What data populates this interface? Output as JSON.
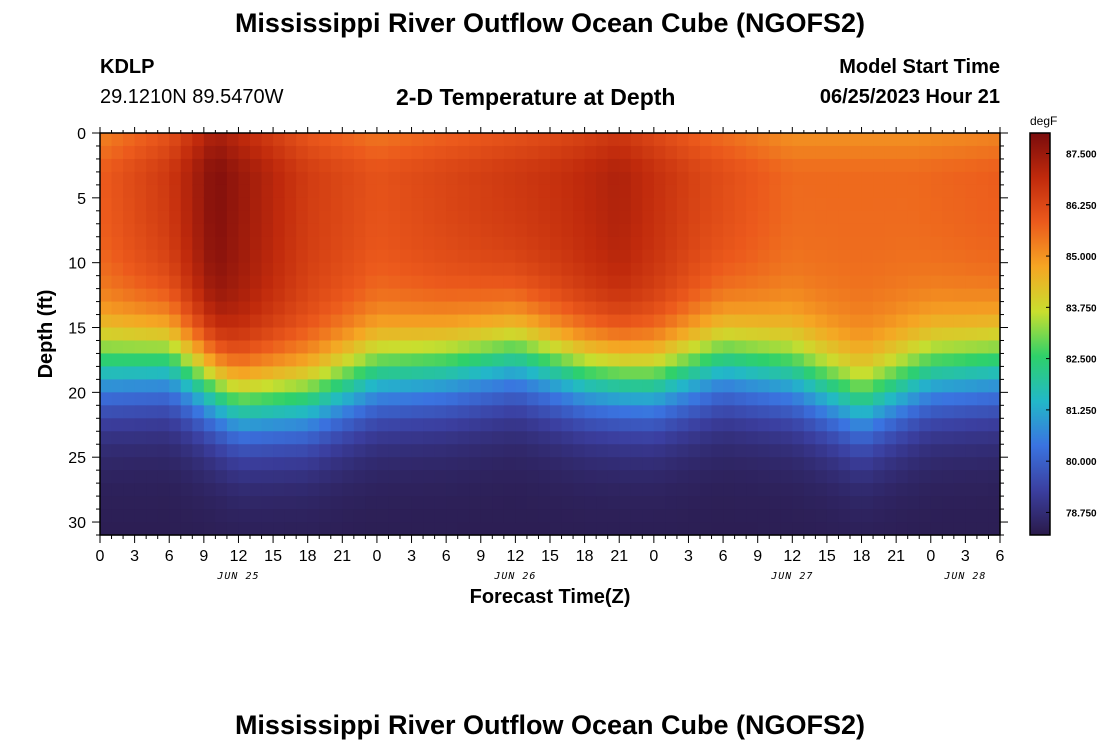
{
  "page": {
    "title_top": "Mississippi River Outflow Ocean Cube (NGOFS2)",
    "title_bottom": "Mississippi River Outflow Ocean Cube (NGOFS2)",
    "station_id": "KDLP",
    "coordinates": "29.1210N  89.5470W",
    "subtitle": "2-D Temperature at Depth",
    "model_start_label": "Model Start Time",
    "model_start_value": "06/25/2023 Hour 21"
  },
  "chart_data": {
    "type": "heatmap",
    "title": "2-D Temperature at Depth",
    "xlabel": "Forecast Time(Z)",
    "ylabel": "Depth (ft)",
    "x_range_hours": [
      0,
      78
    ],
    "x_tick_labels": [
      "0",
      "3",
      "6",
      "9",
      "12",
      "15",
      "18",
      "21",
      "0",
      "3",
      "6",
      "9",
      "12",
      "15",
      "18",
      "21",
      "0",
      "3",
      "6",
      "9",
      "12",
      "15",
      "18",
      "21",
      "0",
      "3",
      "6"
    ],
    "date_labels": [
      {
        "label": "JUN 25",
        "hour": 12
      },
      {
        "label": "JUN 26",
        "hour": 36
      },
      {
        "label": "JUN 27",
        "hour": 60
      },
      {
        "label": "JUN 28",
        "hour": 75
      }
    ],
    "ylim": [
      0,
      31
    ],
    "y_ticks": [
      0,
      5,
      10,
      15,
      20,
      25,
      30
    ],
    "y_reversed": true,
    "colorbar": {
      "unit": "degF",
      "min": 78.2,
      "max": 88.0,
      "tick_labels": [
        "87.500",
        "86.250",
        "85.000",
        "83.750",
        "82.500",
        "81.250",
        "80.000",
        "78.750"
      ],
      "tick_values": [
        87.5,
        86.25,
        85.0,
        83.75,
        82.5,
        81.25,
        80.0,
        78.75
      ],
      "colors": [
        "#2a1a4a",
        "#3b3fa0",
        "#3a73e0",
        "#22b8c8",
        "#2ed16a",
        "#c9de2e",
        "#f5a623",
        "#ec5a1c",
        "#c02a0c",
        "#7a0c0c"
      ]
    },
    "thermocline_depth_ft": [
      {
        "hour": 0,
        "depth": 18.0
      },
      {
        "hour": 6,
        "depth": 17.5
      },
      {
        "hour": 12,
        "depth": 20.5
      },
      {
        "hour": 18,
        "depth": 20.5
      },
      {
        "hour": 24,
        "depth": 18.5
      },
      {
        "hour": 30,
        "depth": 18.0
      },
      {
        "hour": 36,
        "depth": 17.0
      },
      {
        "hour": 42,
        "depth": 18.5
      },
      {
        "hour": 48,
        "depth": 19.0
      },
      {
        "hour": 54,
        "depth": 17.5
      },
      {
        "hour": 60,
        "depth": 18.5
      },
      {
        "hour": 66,
        "depth": 21.0
      },
      {
        "hour": 72,
        "depth": 18.5
      },
      {
        "hour": 78,
        "depth": 18.0
      }
    ],
    "surface_max_degF": [
      {
        "hour": 0,
        "value": 85.8
      },
      {
        "hour": 6,
        "value": 86.6
      },
      {
        "hour": 10,
        "value": 87.9
      },
      {
        "hour": 18,
        "value": 86.5
      },
      {
        "hour": 24,
        "value": 86.0
      },
      {
        "hour": 32,
        "value": 86.4
      },
      {
        "hour": 40,
        "value": 86.8
      },
      {
        "hour": 45,
        "value": 87.2
      },
      {
        "hour": 52,
        "value": 86.3
      },
      {
        "hour": 60,
        "value": 85.6
      },
      {
        "hour": 70,
        "value": 85.6
      },
      {
        "hour": 78,
        "value": 85.8
      }
    ],
    "bottom_min_degF": 78.3
  }
}
